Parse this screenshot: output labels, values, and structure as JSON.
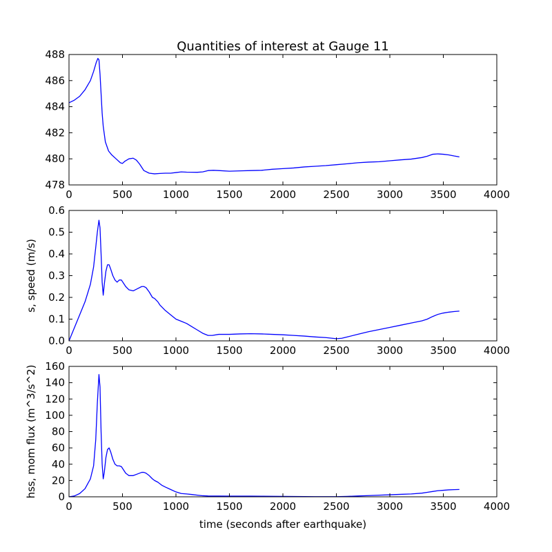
{
  "chart_data": [
    {
      "type": "line",
      "title": "Quantities of interest at Gauge 11",
      "xlabel": "",
      "ylabel": "",
      "xlim": [
        0,
        4000
      ],
      "ylim": [
        478,
        488
      ],
      "xticks": [
        0,
        500,
        1000,
        1500,
        2000,
        2500,
        3000,
        3500,
        4000
      ],
      "yticks": [
        478,
        480,
        482,
        484,
        486,
        488
      ],
      "color": "#0000ff",
      "grid": false,
      "series": [
        {
          "x": [
            0,
            50,
            100,
            150,
            200,
            230,
            255,
            270,
            280,
            290,
            300,
            310,
            320,
            340,
            370,
            400,
            440,
            480,
            500,
            520,
            560,
            600,
            630,
            660,
            700,
            750,
            800,
            850,
            900,
            950,
            1000,
            1050,
            1100,
            1200,
            1250,
            1300,
            1350,
            1400,
            1500,
            1600,
            1700,
            1800,
            1900,
            2000,
            2100,
            2200,
            2300,
            2400,
            2500,
            2600,
            2700,
            2800,
            2900,
            3000,
            3100,
            3200,
            3300,
            3350,
            3400,
            3450,
            3500,
            3550,
            3600,
            3650
          ],
          "y": [
            484.3,
            484.5,
            484.8,
            485.3,
            486.0,
            486.7,
            487.4,
            487.7,
            487.6,
            486.5,
            485.0,
            483.5,
            482.5,
            481.3,
            480.6,
            480.3,
            480.0,
            479.7,
            479.65,
            479.8,
            480.0,
            480.05,
            479.9,
            479.6,
            479.1,
            478.9,
            478.85,
            478.88,
            478.9,
            478.9,
            478.95,
            479.0,
            478.98,
            478.97,
            479.0,
            479.1,
            479.12,
            479.1,
            479.05,
            479.08,
            479.1,
            479.12,
            479.2,
            479.25,
            479.3,
            479.38,
            479.43,
            479.48,
            479.55,
            479.62,
            479.7,
            479.75,
            479.78,
            479.85,
            479.92,
            479.98,
            480.1,
            480.2,
            480.35,
            480.38,
            480.35,
            480.3,
            480.22,
            480.15
          ]
        }
      ]
    },
    {
      "type": "line",
      "title": "",
      "xlabel": "",
      "ylabel": "s, speed (m/s)",
      "xlim": [
        0,
        4000
      ],
      "ylim": [
        0.0,
        0.6
      ],
      "xticks": [
        0,
        500,
        1000,
        1500,
        2000,
        2500,
        3000,
        3500,
        4000
      ],
      "yticks": [
        0.0,
        0.1,
        0.2,
        0.3,
        0.4,
        0.5,
        0.6
      ],
      "color": "#0000ff",
      "grid": false,
      "series": [
        {
          "x": [
            0,
            50,
            100,
            150,
            200,
            230,
            250,
            265,
            280,
            290,
            300,
            310,
            320,
            330,
            345,
            360,
            375,
            390,
            410,
            430,
            450,
            470,
            490,
            510,
            530,
            560,
            600,
            640,
            680,
            700,
            720,
            750,
            780,
            800,
            830,
            850,
            870,
            900,
            950,
            1000,
            1050,
            1100,
            1150,
            1200,
            1250,
            1300,
            1340,
            1400,
            1500,
            1600,
            1700,
            1800,
            1900,
            2000,
            2100,
            2200,
            2300,
            2400,
            2500,
            2550,
            2600,
            2700,
            2800,
            2900,
            3000,
            3100,
            3200,
            3300,
            3350,
            3400,
            3450,
            3500,
            3550,
            3600,
            3650
          ],
          "y": [
            0.0,
            0.06,
            0.12,
            0.18,
            0.26,
            0.34,
            0.43,
            0.5,
            0.555,
            0.52,
            0.4,
            0.27,
            0.21,
            0.26,
            0.32,
            0.35,
            0.35,
            0.33,
            0.3,
            0.28,
            0.27,
            0.28,
            0.28,
            0.265,
            0.25,
            0.235,
            0.23,
            0.24,
            0.25,
            0.25,
            0.245,
            0.225,
            0.2,
            0.195,
            0.18,
            0.165,
            0.155,
            0.14,
            0.12,
            0.1,
            0.09,
            0.08,
            0.065,
            0.05,
            0.035,
            0.025,
            0.025,
            0.03,
            0.03,
            0.032,
            0.033,
            0.032,
            0.03,
            0.028,
            0.025,
            0.022,
            0.018,
            0.015,
            0.01,
            0.012,
            0.018,
            0.03,
            0.042,
            0.052,
            0.062,
            0.072,
            0.082,
            0.092,
            0.1,
            0.112,
            0.122,
            0.128,
            0.132,
            0.135,
            0.137
          ]
        }
      ]
    },
    {
      "type": "line",
      "title": "",
      "xlabel": "time (seconds after earthquake)",
      "ylabel": "hss, mom flux (m^3/s^2)",
      "xlim": [
        0,
        4000
      ],
      "ylim": [
        0,
        160
      ],
      "xticks": [
        0,
        500,
        1000,
        1500,
        2000,
        2500,
        3000,
        3500,
        4000
      ],
      "yticks": [
        0,
        20,
        40,
        60,
        80,
        100,
        120,
        140,
        160
      ],
      "color": "#0000ff",
      "grid": false,
      "series": [
        {
          "x": [
            0,
            50,
            100,
            150,
            200,
            230,
            250,
            265,
            280,
            290,
            300,
            310,
            320,
            330,
            345,
            360,
            375,
            390,
            410,
            430,
            450,
            470,
            490,
            510,
            530,
            560,
            600,
            640,
            680,
            700,
            720,
            750,
            780,
            800,
            830,
            850,
            870,
            900,
            950,
            1000,
            1050,
            1100,
            1150,
            1200,
            1250,
            1300,
            1400,
            1500,
            1600,
            1700,
            1800,
            1900,
            2000,
            2100,
            2200,
            2300,
            2400,
            2500,
            2600,
            2700,
            2800,
            2900,
            3000,
            3100,
            3200,
            3300,
            3350,
            3400,
            3450,
            3500,
            3550,
            3600,
            3650
          ],
          "y": [
            0,
            1,
            4,
            10,
            22,
            38,
            70,
            115,
            150,
            135,
            80,
            40,
            22,
            30,
            48,
            58,
            60,
            55,
            46,
            40,
            38,
            38,
            37,
            33,
            29,
            26,
            26,
            28,
            30,
            30,
            29,
            26,
            22,
            20,
            18,
            16,
            14,
            12,
            9,
            6,
            4,
            3.5,
            2.8,
            2,
            1.3,
            1,
            0.9,
            0.8,
            0.8,
            0.8,
            0.7,
            0.6,
            0.5,
            0.4,
            0.3,
            0.2,
            0.2,
            0.2,
            0.5,
            1,
            1.5,
            2,
            2.5,
            3,
            3.5,
            4.5,
            5.5,
            6.5,
            7.5,
            8,
            8.5,
            8.8,
            9
          ]
        }
      ]
    }
  ]
}
